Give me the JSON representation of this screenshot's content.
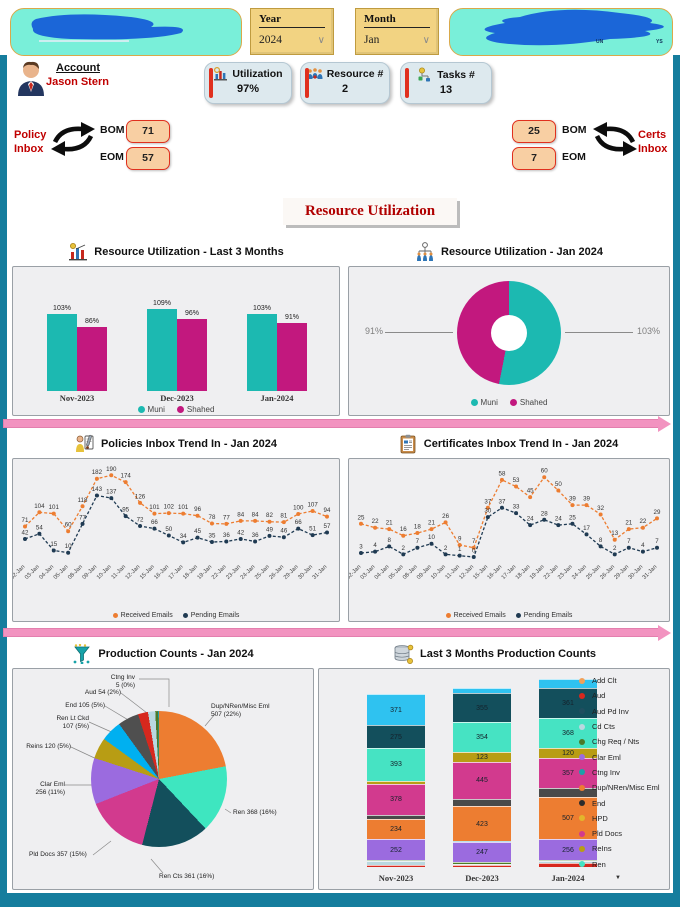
{
  "header": {
    "year_filter": {
      "label": "Year",
      "value": "2024"
    },
    "month_filter": {
      "label": "Month",
      "value": "Jan"
    },
    "right_logo": {
      "fragments": [
        "UN",
        "YS"
      ]
    }
  },
  "account": {
    "label": "Account",
    "name": "Jason Stern"
  },
  "kpis": [
    {
      "label": "Utilization",
      "value": "97%",
      "icon": "utilization-chart-icon"
    },
    {
      "label": "Resource #",
      "value": "2",
      "icon": "resources-people-icon"
    },
    {
      "label": "Tasks #",
      "value": "13",
      "icon": "tasks-workflow-icon"
    }
  ],
  "policy_inbox": {
    "label_top": "Policy",
    "label_bottom": "Inbox",
    "bom_label": "BOM",
    "bom_value": "71",
    "eom_label": "EOM",
    "eom_value": "57"
  },
  "certs_inbox": {
    "label_top": "Certs",
    "label_bottom": "Inbox",
    "bom_label": "BOM",
    "bom_value": "25",
    "eom_label": "EOM",
    "eom_value": "7"
  },
  "page_title": "Resource Utilization",
  "chart_data": [
    {
      "id": "resource-utilization-last-3-months",
      "type": "bar",
      "title": "Resource Utilization - Last 3 Months",
      "categories": [
        "Nov-2023",
        "Dec-2023",
        "Jan-2024"
      ],
      "series": [
        {
          "name": "Muni",
          "color": "#1cb9b1",
          "values": [
            103,
            109,
            103
          ]
        },
        {
          "name": "Shahed",
          "color": "#c2187e",
          "values": [
            86,
            96,
            91
          ]
        }
      ],
      "value_suffix": "%",
      "ylim": [
        0,
        120
      ],
      "legend_position": "bottom",
      "grid": false
    },
    {
      "id": "resource-utilization-jan-2024",
      "type": "pie",
      "title": "Resource Utilization - Jan 2024",
      "donut": true,
      "slices": [
        {
          "name": "Muni",
          "value": 103,
          "label": "103%",
          "color": "#1cb9b1"
        },
        {
          "name": "Shahed",
          "value": 91,
          "label": "91%",
          "color": "#c2187e"
        }
      ],
      "legend_position": "bottom"
    },
    {
      "id": "policies-inbox-trend-jan-2024",
      "type": "line",
      "title": "Policies Inbox Trend In - Jan 2024",
      "x": [
        "02-Jan",
        "03-Jan",
        "04-Jan",
        "05-Jan",
        "08-Jan",
        "09-Jan",
        "10-Jan",
        "11-Jan",
        "12-Jan",
        "15-Jan",
        "16-Jan",
        "17-Jan",
        "18-Jan",
        "19-Jan",
        "22-Jan",
        "23-Jan",
        "24-Jan",
        "25-Jan",
        "26-Jan",
        "29-Jan",
        "30-Jan",
        "31-Jan"
      ],
      "series": [
        {
          "name": "Received Emails",
          "color": "#ed7d31",
          "values": [
            71,
            104,
            101,
            60,
            118,
            182,
            190,
            174,
            126,
            101,
            102,
            101,
            96,
            78,
            77,
            84,
            84,
            82,
            81,
            100,
            107,
            94
          ]
        },
        {
          "name": "Pending Emails",
          "color": "#1f3a52",
          "values": [
            42,
            54,
            15,
            10,
            77,
            143,
            137,
            95,
            72,
            66,
            50,
            34,
            45,
            35,
            36,
            42,
            36,
            49,
            46,
            66,
            51,
            57
          ]
        }
      ],
      "ylim": [
        0,
        200
      ],
      "legend_position": "bottom",
      "grid": false
    },
    {
      "id": "certificates-inbox-trend-jan-2024",
      "type": "line",
      "title": "Certificates Inbox Trend In - Jan 2024",
      "x": [
        "02-Jan",
        "03-Jan",
        "04-Jan",
        "05-Jan",
        "08-Jan",
        "09-Jan",
        "10-Jan",
        "11-Jan",
        "12-Jan",
        "15-Jan",
        "16-Jan",
        "17-Jan",
        "18-Jan",
        "19-Jan",
        "22-Jan",
        "23-Jan",
        "24-Jan",
        "25-Jan",
        "26-Jan",
        "29-Jan",
        "30-Jan",
        "31-Jan"
      ],
      "series": [
        {
          "name": "Received Emails",
          "color": "#ed7d31",
          "values": [
            25,
            22,
            21,
            16,
            18,
            21,
            26,
            9,
            7,
            37,
            58,
            53,
            45,
            60,
            50,
            39,
            39,
            32,
            13,
            21,
            22,
            29
          ]
        },
        {
          "name": "Pending Emails",
          "color": "#1f3a52",
          "values": [
            3,
            4,
            8,
            2,
            7,
            10,
            2,
            1,
            0,
            30,
            37,
            33,
            24,
            28,
            24,
            25,
            17,
            8,
            2,
            7,
            4,
            7
          ]
        }
      ],
      "ylim": [
        0,
        65
      ],
      "legend_position": "bottom",
      "grid": false
    },
    {
      "id": "production-counts-jan-2024",
      "type": "pie",
      "title": "Production Counts - Jan 2024",
      "slices": [
        {
          "name": "Dup/NRen/Misc Eml",
          "value": 507,
          "pct_label": "22%",
          "color": "#ed7d31",
          "draw_pct": 22
        },
        {
          "name": "Ren",
          "value": 368,
          "pct_label": "16%",
          "color": "#3ee6c0",
          "draw_pct": 16
        },
        {
          "name": "Ren Cts",
          "value": 361,
          "pct_label": "16%",
          "color": "#134f5c",
          "draw_pct": 16
        },
        {
          "name": "Pld Docs",
          "value": 357,
          "pct_label": "15%",
          "color": "#d23a8e",
          "draw_pct": 15
        },
        {
          "name": "Clar Eml",
          "value": 256,
          "pct_label": "11%",
          "color": "#9b6bdf",
          "draw_pct": 11
        },
        {
          "name": "Reins",
          "value": 120,
          "pct_label": "5%",
          "color": "#b89d14",
          "draw_pct": 5
        },
        {
          "name": "Ren Lt Ckd",
          "value": 107,
          "pct_label": "5%",
          "color": "#00b0f0",
          "draw_pct": 5
        },
        {
          "name": "End",
          "value": 105,
          "pct_label": "5%",
          "color": "#4f4f4f",
          "draw_pct": 5
        },
        {
          "name": "Aud",
          "value": 54,
          "pct_label": "2%",
          "color": "#d7281e",
          "draw_pct": 2.4
        },
        {
          "name": "",
          "value": null,
          "color": "#b9d8e0",
          "draw_pct": 1.7
        },
        {
          "name": "",
          "value": null,
          "color": "#4c7a28",
          "draw_pct": 0.7
        },
        {
          "name": "Ctng Inv",
          "value": 5,
          "pct_label": "0%",
          "color": "#1d9fa8",
          "draw_pct": 0.2
        }
      ],
      "callouts": [
        [
          "Ctng Inv",
          "5 (0%)"
        ],
        [
          "Aud 54 (2%)"
        ],
        [
          "End 105 (5%)"
        ],
        [
          "Ren Lt Ckd",
          "107 (5%)"
        ],
        [
          "Reins 120 (5%)"
        ],
        [
          "Clar Eml",
          "256 (11%)"
        ],
        [
          "Pld Docs 357 (15%)"
        ],
        [
          "Ren Cts 361 (16%)"
        ],
        [
          "Ren 368 (16%)"
        ],
        [
          "Dup/NRen/Misc Eml",
          "507 (22%)"
        ]
      ]
    },
    {
      "id": "last-3-months-production-counts",
      "type": "bar",
      "stacked": true,
      "title": "Last 3 Months Production Counts",
      "categories": [
        "Nov-2023",
        "Dec-2023",
        "Jan-2024"
      ],
      "series": [
        {
          "name": "Aud",
          "color": "#d7281e",
          "values": [
            30,
            28,
            54
          ]
        },
        {
          "name": "Cd Cts",
          "color": "#b9d8e0",
          "values": [
            38,
            12,
            14
          ]
        },
        {
          "name": "Chg Req / Nts",
          "color": "#4c7a28",
          "values": [
            14,
            16,
            12
          ]
        },
        {
          "name": "Clar Eml",
          "color": "#9b6bdf",
          "values": [
            252,
            247,
            256
          ]
        },
        {
          "name": "Ctng Inv",
          "color": "#1d9fa8",
          "values": [
            8,
            8,
            5
          ]
        },
        {
          "name": "Dup/NRen/Misc Eml",
          "color": "#ed7d31",
          "values": [
            234,
            423,
            507
          ]
        },
        {
          "name": "End",
          "color": "#4a4a4a",
          "values": [
            52,
            88,
            105
          ]
        },
        {
          "name": "Pld Docs",
          "color": "#d23a8e",
          "values": [
            378,
            445,
            357
          ]
        },
        {
          "name": "ReIns",
          "color": "#b89d14",
          "values": [
            36,
            123,
            120
          ]
        },
        {
          "name": "Ren",
          "color": "#46e3c3",
          "values": [
            393,
            354,
            368
          ]
        },
        {
          "name": "Ren Cts",
          "color": "#134f5c",
          "values": [
            275,
            355,
            361
          ]
        },
        {
          "name": "Ren Lt Ckd",
          "color": "#2fc2f0",
          "values": [
            371,
            55,
            107
          ]
        }
      ],
      "legend": [
        {
          "label": "Add Clt",
          "color": "#f2a058"
        },
        {
          "label": "Aud",
          "color": "#d7281e"
        },
        {
          "label": "Aud Pd Inv",
          "color": "#1f4e5f"
        },
        {
          "label": "Cd Cts",
          "color": "#b9d8e0"
        },
        {
          "label": "Chg Req / Nts",
          "color": "#4c7a28"
        },
        {
          "label": "Clar Eml",
          "color": "#9b6bdf"
        },
        {
          "label": "Ctng Inv",
          "color": "#1d9fa8"
        },
        {
          "label": "Dup/NRen/Misc Eml",
          "color": "#ed7d31"
        },
        {
          "label": "End",
          "color": "#2b2b2b"
        },
        {
          "label": "HPD",
          "color": "#e2b62c"
        },
        {
          "label": "Pld Docs",
          "color": "#d23a8e"
        },
        {
          "label": "ReIns",
          "color": "#b89d14"
        },
        {
          "label": "Ren",
          "color": "#46e3c3"
        }
      ],
      "legend_more_indicator": "▼",
      "legend_position": "right"
    }
  ]
}
